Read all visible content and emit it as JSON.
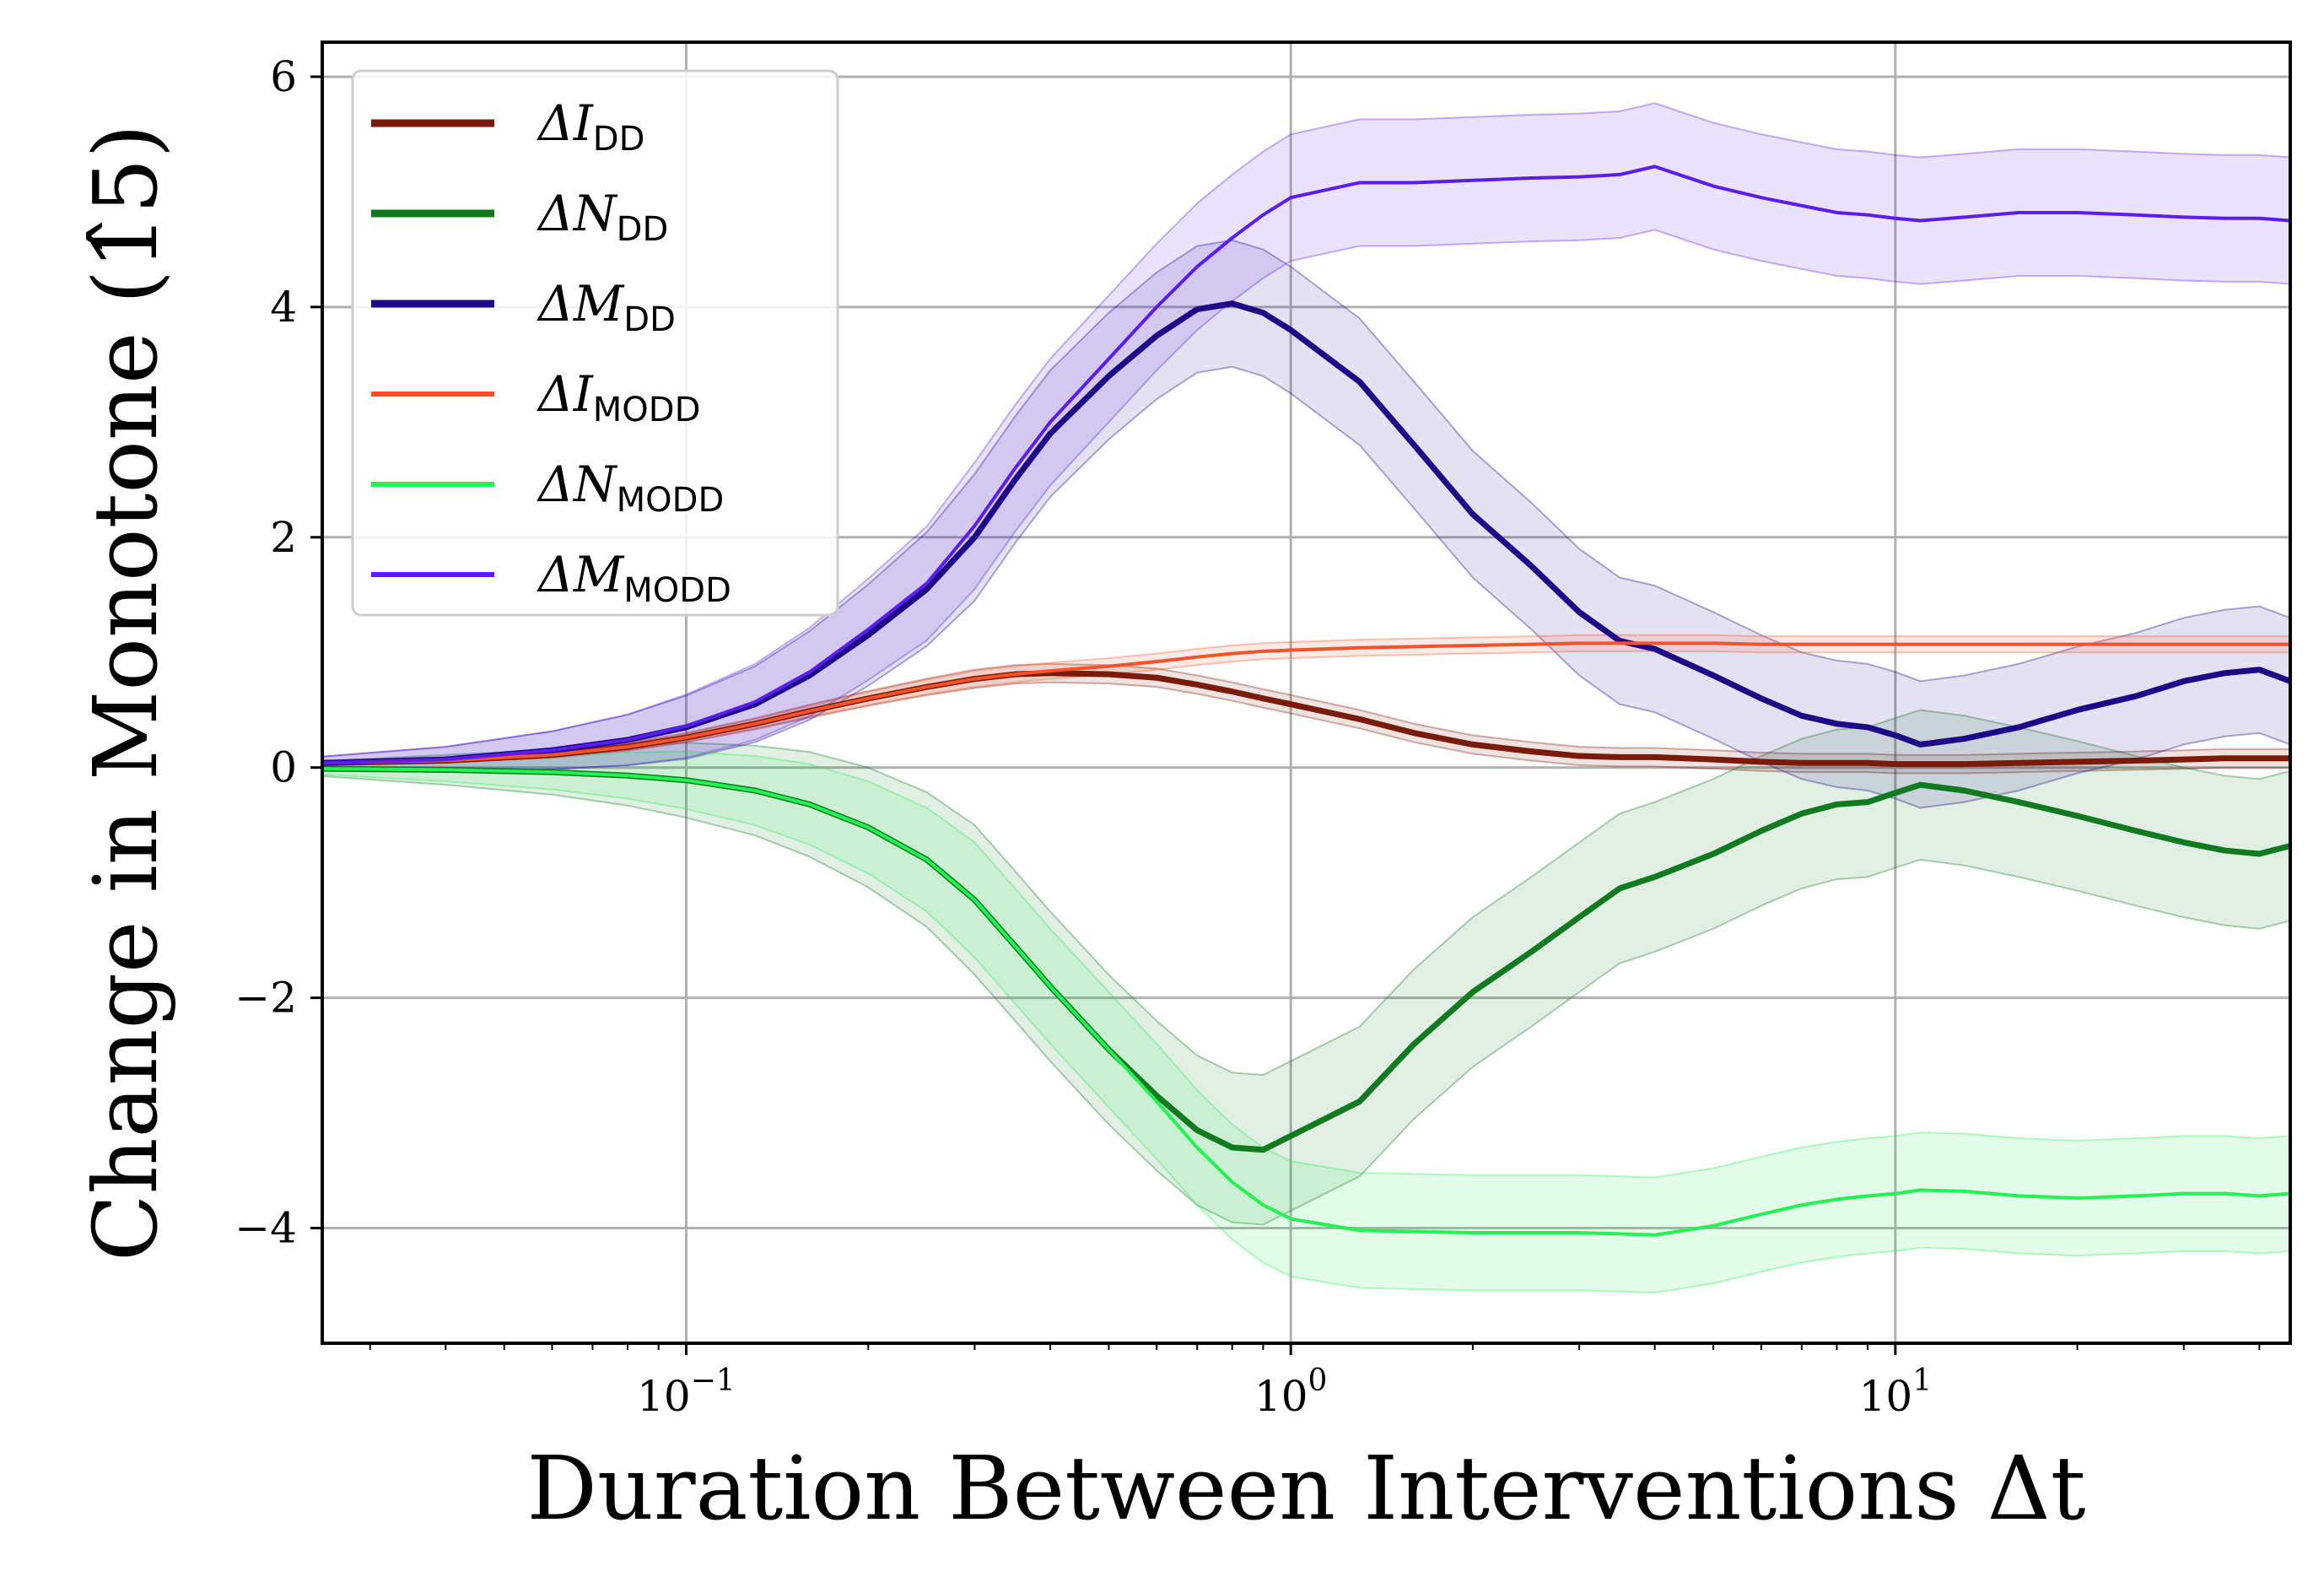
{
  "chart_data": {
    "type": "line",
    "xscale": "log",
    "xlim": [
      0.025,
      45
    ],
    "ylim": [
      -5.0,
      6.3
    ],
    "grid": true,
    "legend_placement": "top-left",
    "xlabel": "Duration Between Interventions Δt",
    "ylabel": "Change in Monotone (1̂5)",
    "x_ticks": [
      {
        "value": 0.1,
        "base": "10",
        "exp": "−1"
      },
      {
        "value": 1,
        "base": "10",
        "exp": "0"
      },
      {
        "value": 10,
        "base": "10",
        "exp": "1"
      }
    ],
    "y_ticks": [
      {
        "value": -4,
        "label": "−4"
      },
      {
        "value": -2,
        "label": "−2"
      },
      {
        "value": 0,
        "label": "0"
      },
      {
        "value": 2,
        "label": "2"
      },
      {
        "value": 4,
        "label": "4"
      },
      {
        "value": 6,
        "label": "6"
      }
    ],
    "x": [
      0.025,
      0.04,
      0.06,
      0.08,
      0.1,
      0.13,
      0.16,
      0.2,
      0.25,
      0.3,
      0.35,
      0.4,
      0.5,
      0.6,
      0.7,
      0.8,
      0.9,
      1.0,
      1.3,
      1.6,
      2.0,
      2.5,
      3.0,
      3.5,
      4.0,
      5.0,
      6.0,
      7.0,
      8.0,
      9.0,
      10,
      11,
      13,
      16,
      20,
      25,
      30,
      35,
      40,
      45
    ],
    "series": [
      {
        "name": "ΔI",
        "sub": "DD",
        "color": "#7a1a08",
        "width": 7,
        "values": [
          0.04,
          0.06,
          0.11,
          0.18,
          0.26,
          0.38,
          0.49,
          0.6,
          0.7,
          0.77,
          0.81,
          0.82,
          0.81,
          0.78,
          0.72,
          0.66,
          0.6,
          0.55,
          0.42,
          0.3,
          0.2,
          0.14,
          0.1,
          0.09,
          0.09,
          0.07,
          0.05,
          0.04,
          0.04,
          0.04,
          0.03,
          0.03,
          0.03,
          0.04,
          0.05,
          0.06,
          0.07,
          0.08,
          0.08,
          0.08
        ],
        "band": 0.08
      },
      {
        "name": "ΔN",
        "sub": "DD",
        "color": "#0f7a1e",
        "width": 7,
        "values": [
          -0.01,
          -0.02,
          -0.04,
          -0.07,
          -0.11,
          -0.2,
          -0.32,
          -0.52,
          -0.8,
          -1.15,
          -1.55,
          -1.9,
          -2.45,
          -2.85,
          -3.15,
          -3.3,
          -3.32,
          -3.2,
          -2.9,
          -2.4,
          -1.95,
          -1.6,
          -1.3,
          -1.05,
          -0.95,
          -0.75,
          -0.55,
          -0.4,
          -0.32,
          -0.3,
          -0.22,
          -0.15,
          -0.2,
          -0.3,
          -0.42,
          -0.55,
          -0.65,
          -0.72,
          -0.75,
          -0.68
        ],
        "band": 0.65
      },
      {
        "name": "ΔM",
        "sub": "DD",
        "color": "#1e0688",
        "width": 7,
        "values": [
          0.04,
          0.07,
          0.15,
          0.24,
          0.35,
          0.55,
          0.8,
          1.15,
          1.55,
          2.0,
          2.5,
          2.9,
          3.4,
          3.75,
          3.98,
          4.03,
          3.95,
          3.8,
          3.35,
          2.8,
          2.2,
          1.75,
          1.35,
          1.1,
          1.03,
          0.8,
          0.6,
          0.45,
          0.38,
          0.35,
          0.28,
          0.2,
          0.25,
          0.35,
          0.5,
          0.62,
          0.75,
          0.82,
          0.85,
          0.75
        ],
        "band": 0.55
      },
      {
        "name": "ΔI",
        "sub": "MODD",
        "color": "#f5522a",
        "width": 4,
        "values": [
          0.04,
          0.06,
          0.11,
          0.18,
          0.26,
          0.38,
          0.49,
          0.6,
          0.7,
          0.77,
          0.81,
          0.84,
          0.88,
          0.92,
          0.96,
          0.99,
          1.01,
          1.02,
          1.04,
          1.05,
          1.06,
          1.07,
          1.08,
          1.08,
          1.08,
          1.08,
          1.07,
          1.07,
          1.07,
          1.07,
          1.07,
          1.07,
          1.07,
          1.07,
          1.07,
          1.07,
          1.07,
          1.07,
          1.07,
          1.07
        ],
        "band": 0.07
      },
      {
        "name": "ΔN",
        "sub": "MODD",
        "color": "#22f252",
        "width": 4,
        "values": [
          -0.01,
          -0.02,
          -0.04,
          -0.07,
          -0.11,
          -0.2,
          -0.32,
          -0.52,
          -0.8,
          -1.15,
          -1.55,
          -1.9,
          -2.45,
          -2.9,
          -3.3,
          -3.6,
          -3.8,
          -3.92,
          -4.02,
          -4.03,
          -4.04,
          -4.04,
          -4.04,
          -4.05,
          -4.06,
          -3.98,
          -3.88,
          -3.8,
          -3.75,
          -3.72,
          -3.7,
          -3.67,
          -3.68,
          -3.72,
          -3.74,
          -3.72,
          -3.7,
          -3.7,
          -3.72,
          -3.7
        ],
        "band": 0.5
      },
      {
        "name": "ΔM",
        "sub": "MODD",
        "color": "#5a1cf0",
        "width": 4,
        "values": [
          0.04,
          0.07,
          0.15,
          0.24,
          0.36,
          0.57,
          0.83,
          1.2,
          1.6,
          2.1,
          2.6,
          3.0,
          3.55,
          4.0,
          4.35,
          4.6,
          4.8,
          4.95,
          5.08,
          5.08,
          5.1,
          5.12,
          5.13,
          5.15,
          5.22,
          5.05,
          4.95,
          4.88,
          4.82,
          4.8,
          4.77,
          4.75,
          4.78,
          4.82,
          4.82,
          4.8,
          4.78,
          4.77,
          4.77,
          4.75
        ],
        "band": 0.55
      }
    ]
  }
}
